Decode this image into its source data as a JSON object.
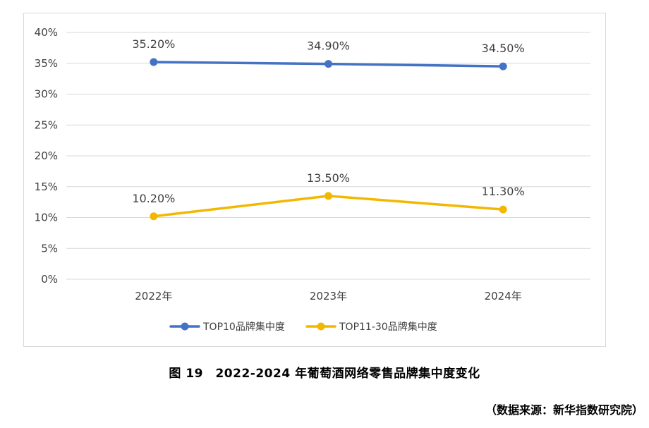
{
  "chart_data": {
    "type": "line",
    "categories": [
      "2022年",
      "2023年",
      "2024年"
    ],
    "series": [
      {
        "name": "TOP10品牌集中度",
        "values": [
          35.2,
          34.9,
          34.5
        ],
        "labels": [
          "35.20%",
          "34.90%",
          "34.50%"
        ],
        "color": "#4472C4"
      },
      {
        "name": "TOP11-30品牌集中度",
        "values": [
          10.2,
          13.5,
          11.3
        ],
        "labels": [
          "10.20%",
          "13.50%",
          "11.30%"
        ],
        "color": "#F2B800"
      }
    ],
    "yticks": [
      "0%",
      "5%",
      "10%",
      "15%",
      "20%",
      "25%",
      "30%",
      "35%",
      "40%"
    ],
    "ylim": [
      0,
      40
    ],
    "grid": true,
    "legend": "bottom-center",
    "title": "",
    "xlabel": "",
    "ylabel": ""
  },
  "caption": "图 19　2022-2024 年葡萄酒网络零售品牌集中度变化",
  "source": "（数据来源：新华指数研究院）"
}
